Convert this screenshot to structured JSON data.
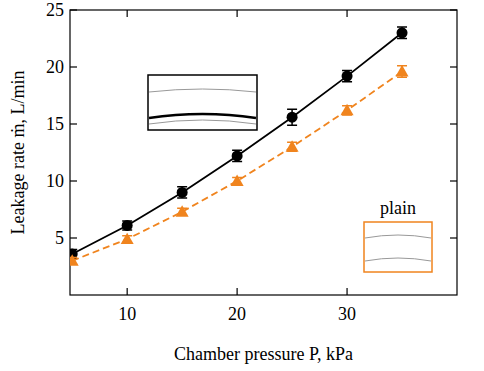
{
  "chart_data": {
    "type": "line",
    "x_label": "Chamber pressure P, kPa",
    "y_label": "Leakage rate ṁ, L/min",
    "x": [
      5,
      10,
      15,
      20,
      25,
      30,
      35
    ],
    "xlim": [
      4.8,
      40
    ],
    "xticks": [
      10,
      20,
      30
    ],
    "ylim": [
      0,
      25
    ],
    "yticks": [
      5,
      10,
      15,
      20,
      25
    ],
    "series": [
      {
        "color": "#000000",
        "marker": "circle",
        "line_style": "solid",
        "values": [
          3.6,
          6.1,
          9.0,
          12.2,
          15.6,
          19.2,
          23.0
        ],
        "errors": [
          0.4,
          0.4,
          0.5,
          0.5,
          0.7,
          0.5,
          0.5
        ]
      },
      {
        "name": "plain",
        "color": "#f0841e",
        "marker": "triangle",
        "line_style": "dashed",
        "values": [
          3.0,
          4.9,
          7.3,
          10.0,
          13.0,
          16.2,
          19.6
        ],
        "errors": [
          0.3,
          0.3,
          0.3,
          0.3,
          0.4,
          0.4,
          0.5
        ]
      }
    ]
  }
}
